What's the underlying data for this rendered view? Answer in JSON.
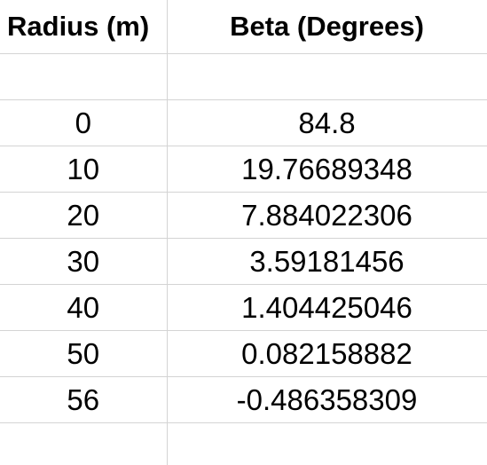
{
  "spreadsheet": {
    "headers": [
      "Radius (m)",
      "Beta (Degrees)"
    ],
    "rows": [
      [
        "",
        ""
      ],
      [
        "0",
        "84.8"
      ],
      [
        "10",
        "19.76689348"
      ],
      [
        "20",
        "7.884022306"
      ],
      [
        "30",
        "3.59181456"
      ],
      [
        "40",
        "1.404425046"
      ],
      [
        "50",
        "0.082158882"
      ],
      [
        "56",
        "-0.486358309"
      ],
      [
        "",
        ""
      ]
    ]
  }
}
